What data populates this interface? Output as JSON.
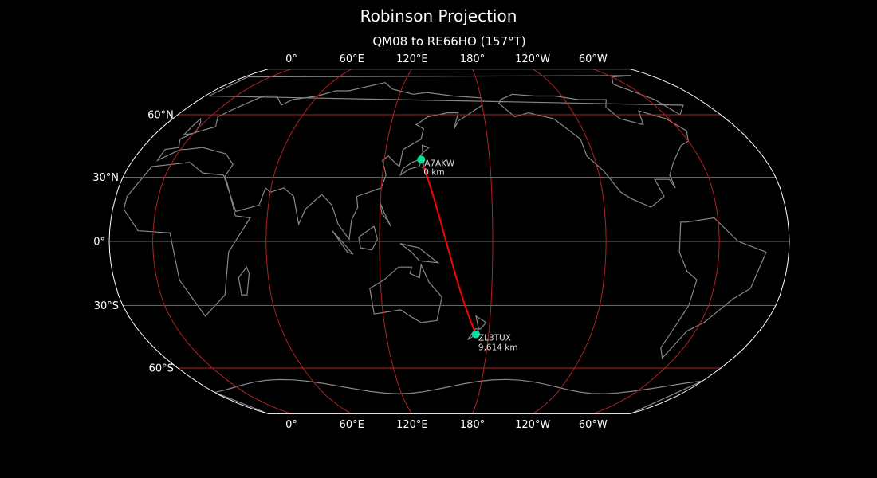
{
  "title": "Robinson Projection",
  "subtitle": "QM08 to RE66HO (157°T)",
  "map": {
    "projection": "Robinson",
    "central_longitude": 157,
    "background": "#000000",
    "coastline_color": "#888888",
    "gridline_color": "#b22222",
    "outline_color": "#ffffff",
    "longitude_ticks": [
      {
        "lon": 0,
        "label": "0°"
      },
      {
        "lon": 60,
        "label": "60°E"
      },
      {
        "lon": 120,
        "label": "120°E"
      },
      {
        "lon": 180,
        "label": "180°"
      },
      {
        "lon": -120,
        "label": "120°W"
      },
      {
        "lon": -60,
        "label": "60°W"
      }
    ],
    "latitude_ticks": [
      {
        "lat": 60,
        "label": "60°N"
      },
      {
        "lat": 30,
        "label": "30°N"
      },
      {
        "lat": 0,
        "label": "0°"
      },
      {
        "lat": -30,
        "label": "30°S"
      },
      {
        "lat": -60,
        "label": "60°S"
      }
    ]
  },
  "path": {
    "color": "#ff0000",
    "marker_color": "#00e0a0",
    "start": {
      "call": "JA7AKW",
      "distance": "0 km",
      "lat": 38.3,
      "lon": 141.0
    },
    "end": {
      "call": "ZL3TUX",
      "distance": "9,614 km",
      "lat": -43.5,
      "lon": 172.6
    }
  }
}
